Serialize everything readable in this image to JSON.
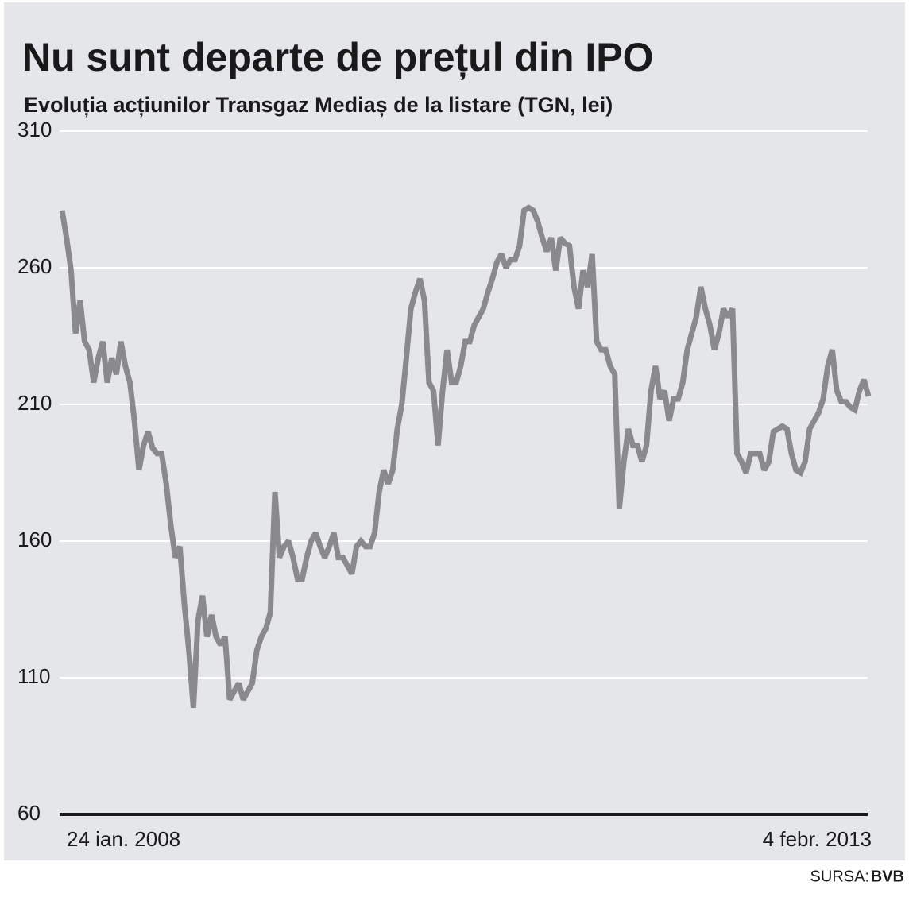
{
  "chart_data": {
    "type": "line",
    "title": "Nu sunt departe de prețul din IPO",
    "subtitle": "Evoluția acțiunilor Transgaz Mediaș de la listare (TGN, lei)",
    "source_label": "SURSA:",
    "source": "BVB",
    "categories": [
      "24 ian. 2008",
      null,
      null,
      null,
      null,
      null,
      null,
      null,
      null,
      null,
      null,
      null,
      null,
      null,
      null,
      null,
      null,
      null,
      null,
      null,
      null,
      null,
      null,
      null,
      null,
      null,
      null,
      null,
      null,
      null,
      null,
      null,
      null,
      null,
      null,
      null,
      null,
      null,
      null,
      null,
      null,
      null,
      null,
      null,
      null,
      null,
      null,
      null,
      null,
      null,
      null,
      null,
      null,
      null,
      null,
      null,
      null,
      null,
      null,
      null,
      null,
      null,
      null,
      null,
      null,
      null,
      null,
      null,
      null,
      null,
      null,
      null,
      null,
      null,
      null,
      null,
      null,
      null,
      null,
      null,
      null,
      null,
      null,
      null,
      null,
      null,
      null,
      null,
      null,
      null,
      null,
      null,
      null,
      null,
      null,
      null,
      null,
      null,
      null,
      null,
      null,
      null,
      null,
      null,
      null,
      null,
      null,
      null,
      null,
      null,
      null,
      null,
      null,
      null,
      null,
      null,
      null,
      null,
      null,
      null,
      null,
      null,
      null,
      null,
      null,
      null,
      null,
      null,
      null,
      null,
      null,
      null,
      null,
      null,
      null,
      null,
      null,
      null,
      null,
      null,
      null,
      null,
      null,
      null,
      null,
      null,
      null,
      null,
      null,
      null,
      null,
      null,
      null,
      null,
      null,
      null,
      null,
      null,
      null,
      null,
      null,
      null,
      null,
      null,
      null,
      null,
      null,
      null,
      null,
      null,
      null,
      null,
      null,
      null,
      null,
      null,
      null,
      null,
      "4 febr. 2013"
    ],
    "values": [
      281,
      271,
      259,
      236,
      248,
      233,
      230,
      218,
      227,
      233,
      218,
      227,
      221,
      233,
      224,
      218,
      204,
      186,
      195,
      200,
      194,
      192,
      192,
      181,
      166,
      154,
      158,
      137,
      120,
      99,
      131,
      140,
      125,
      133,
      125,
      122,
      125,
      102,
      105,
      108,
      102,
      105,
      108,
      120,
      125,
      128,
      134,
      178,
      154,
      158,
      160,
      154,
      146,
      146,
      154,
      160,
      163,
      158,
      154,
      158,
      163,
      154,
      154,
      151,
      148,
      158,
      160,
      158,
      158,
      163,
      178,
      186,
      181,
      186,
      201,
      210,
      227,
      245,
      251,
      256,
      248,
      218,
      215,
      195,
      215,
      230,
      218,
      218,
      224,
      233,
      233,
      239,
      242,
      245,
      251,
      256,
      262,
      265,
      260,
      263,
      263,
      268,
      281,
      282,
      281,
      277,
      271,
      266,
      271,
      259,
      271,
      269,
      268,
      253,
      245,
      259,
      253,
      265,
      233,
      230,
      230,
      224,
      221,
      172,
      189,
      201,
      195,
      195,
      189,
      195,
      215,
      224,
      212,
      215,
      204,
      212,
      212,
      218,
      230,
      236,
      242,
      253,
      245,
      239,
      230,
      236,
      245,
      242,
      245,
      192,
      189,
      185,
      192,
      192,
      192,
      186,
      189,
      200,
      201,
      202,
      201,
      192,
      186,
      185,
      189,
      201,
      204,
      207,
      212,
      224,
      230,
      215,
      211,
      211,
      209,
      208,
      215,
      219,
      213
    ],
    "color": "#8a8a8c",
    "ylim": [
      60,
      310
    ],
    "yticks": [
      60,
      110,
      160,
      210,
      260,
      310
    ],
    "grid": true
  }
}
